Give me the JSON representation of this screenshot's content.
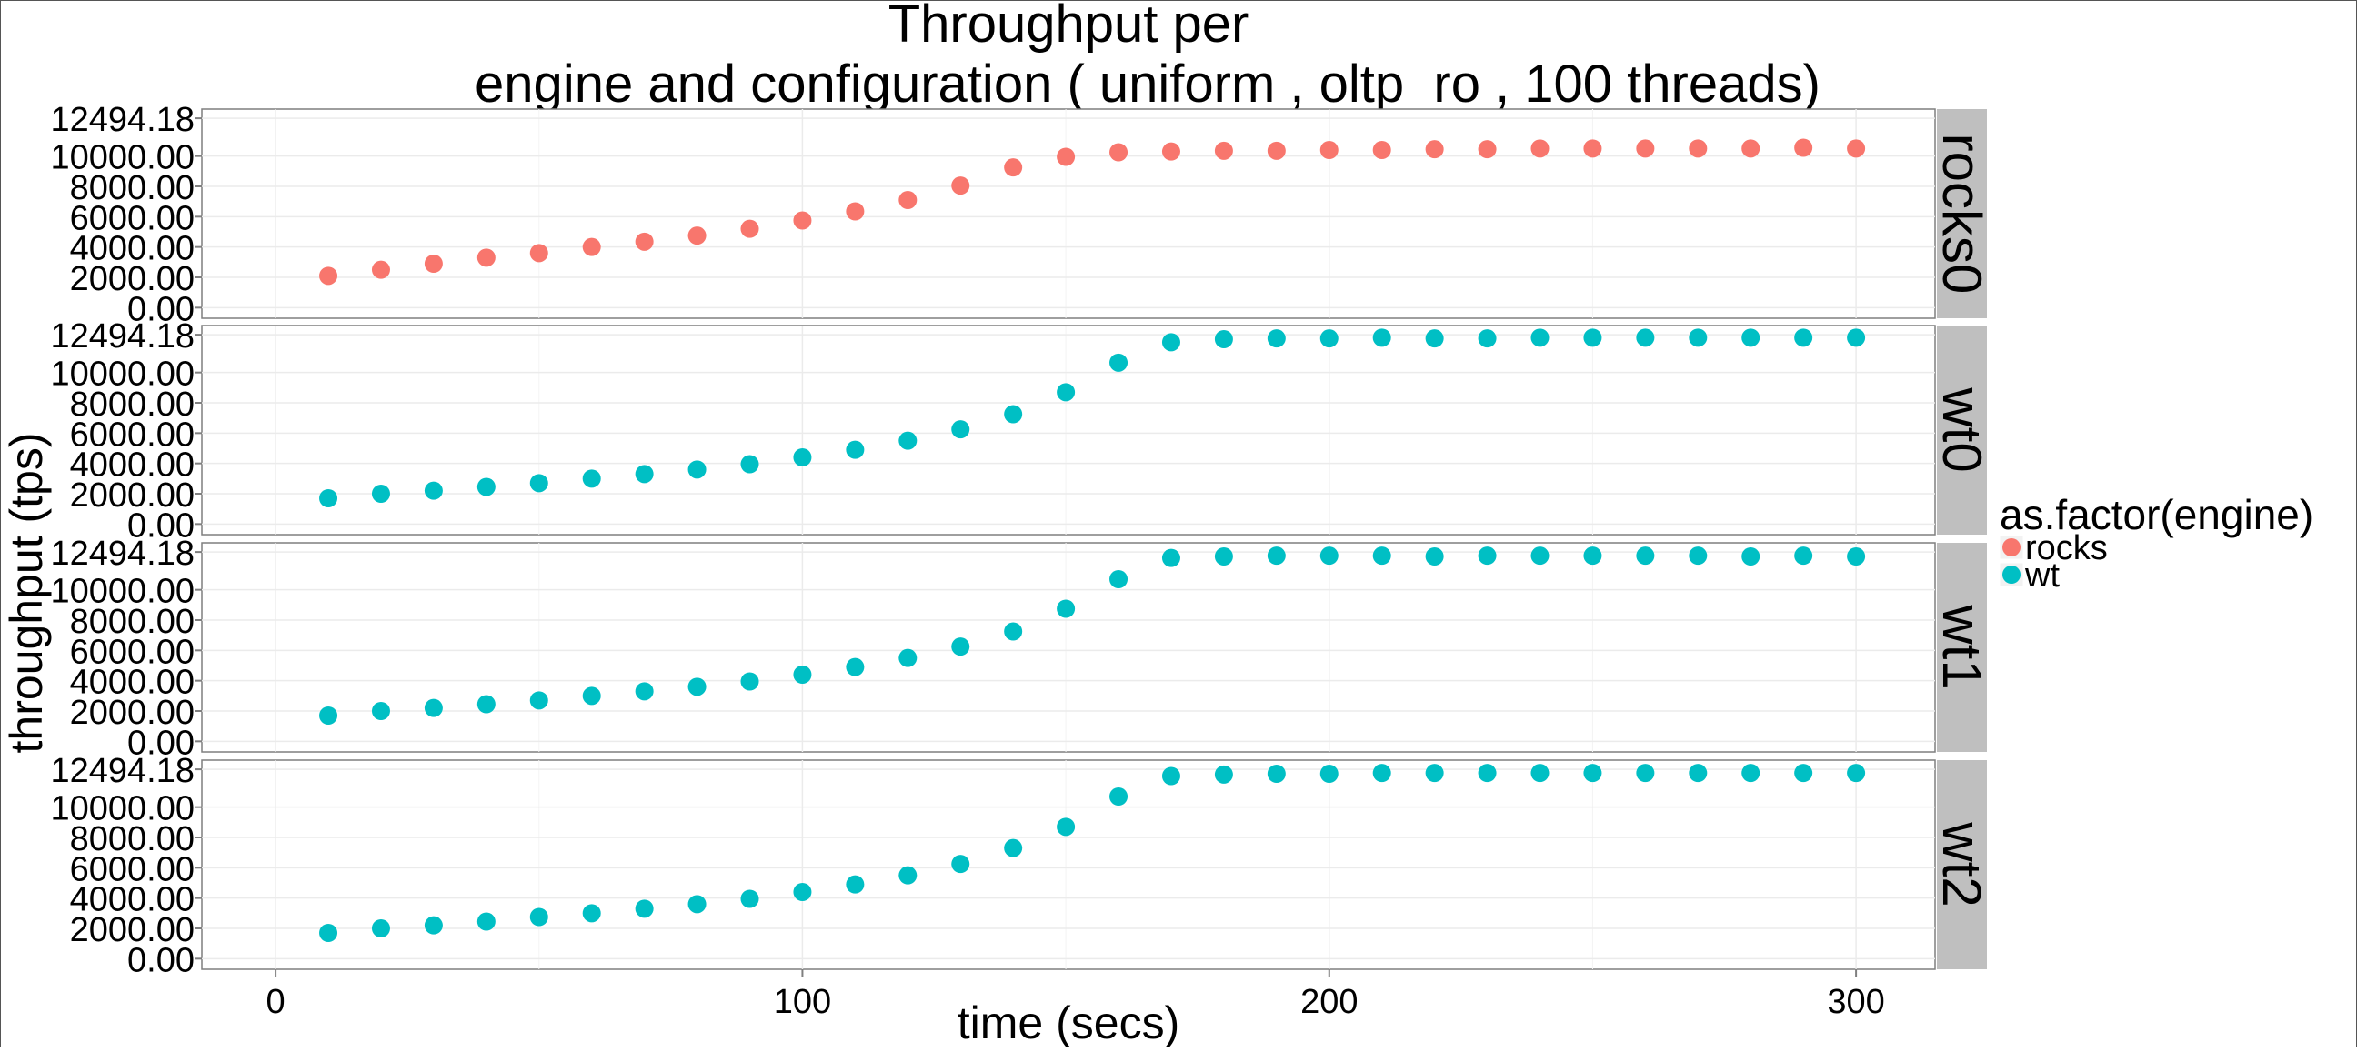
{
  "chart_data": {
    "type": "scatter",
    "title_lines": [
      "Throughput per",
      "engine and configuration ( uniform , oltp_ro ,  100  threads)"
    ],
    "xlabel": "time (secs)",
    "ylabel": "throughput (tps)",
    "xlim": [
      -14,
      315
    ],
    "ylim": [
      -700,
      13100
    ],
    "x_ticks": [
      0,
      100,
      200,
      300
    ],
    "x_tick_labels": [
      "0",
      "100",
      "200",
      "300"
    ],
    "y_ticks": [
      0,
      2000,
      4000,
      6000,
      8000,
      10000,
      12494.18
    ],
    "y_tick_labels": [
      "0.00",
      "2000.00",
      "4000.00",
      "6000.00",
      "8000.00",
      "10000.00",
      "12494.18"
    ],
    "grid": true,
    "legend": {
      "title": "as.factor(engine)",
      "placement": "right",
      "entries": [
        {
          "label": "rocks",
          "color": "#F8766D"
        },
        {
          "label": "wt",
          "color": "#00BFC4"
        }
      ]
    },
    "facets": [
      {
        "label": "rocks0",
        "engine": "rocks",
        "color": "#F8766D",
        "x": [
          10,
          20,
          30,
          40,
          50,
          60,
          70,
          80,
          90,
          100,
          110,
          120,
          130,
          140,
          150,
          160,
          170,
          180,
          190,
          200,
          210,
          220,
          230,
          240,
          250,
          260,
          270,
          280,
          290,
          300
        ],
        "y": [
          2100,
          2500,
          2900,
          3300,
          3600,
          4000,
          4350,
          4750,
          5200,
          5750,
          6350,
          7100,
          8050,
          9250,
          9950,
          10250,
          10300,
          10350,
          10350,
          10400,
          10400,
          10450,
          10450,
          10500,
          10500,
          10500,
          10500,
          10500,
          10550,
          10500
        ]
      },
      {
        "label": "wt0",
        "engine": "wt",
        "color": "#00BFC4",
        "x": [
          10,
          20,
          30,
          40,
          50,
          60,
          70,
          80,
          90,
          100,
          110,
          120,
          130,
          140,
          150,
          160,
          170,
          180,
          190,
          200,
          210,
          220,
          230,
          240,
          250,
          260,
          270,
          280,
          290,
          300
        ],
        "y": [
          1700,
          2000,
          2200,
          2450,
          2700,
          3000,
          3300,
          3600,
          3950,
          4400,
          4900,
          5500,
          6250,
          7250,
          8700,
          10650,
          12000,
          12200,
          12250,
          12250,
          12300,
          12250,
          12250,
          12300,
          12300,
          12300,
          12300,
          12300,
          12300,
          12300
        ]
      },
      {
        "label": "wt1",
        "engine": "wt",
        "color": "#00BFC4",
        "x": [
          10,
          20,
          30,
          40,
          50,
          60,
          70,
          80,
          90,
          100,
          110,
          120,
          130,
          140,
          150,
          160,
          170,
          180,
          190,
          200,
          210,
          220,
          230,
          240,
          250,
          260,
          270,
          280,
          290,
          300
        ],
        "y": [
          1700,
          2000,
          2200,
          2450,
          2700,
          3000,
          3300,
          3600,
          3950,
          4400,
          4900,
          5500,
          6250,
          7250,
          8750,
          10700,
          12100,
          12200,
          12250,
          12250,
          12250,
          12200,
          12250,
          12250,
          12250,
          12250,
          12250,
          12200,
          12250,
          12200
        ]
      },
      {
        "label": "wt2",
        "engine": "wt",
        "color": "#00BFC4",
        "x": [
          10,
          20,
          30,
          40,
          50,
          60,
          70,
          80,
          90,
          100,
          110,
          120,
          130,
          140,
          150,
          160,
          170,
          180,
          190,
          200,
          210,
          220,
          230,
          240,
          250,
          260,
          270,
          280,
          290,
          300
        ],
        "y": [
          1700,
          2000,
          2200,
          2450,
          2750,
          3000,
          3300,
          3600,
          3950,
          4400,
          4900,
          5500,
          6250,
          7300,
          8700,
          10700,
          12050,
          12150,
          12200,
          12200,
          12250,
          12250,
          12250,
          12250,
          12250,
          12250,
          12250,
          12250,
          12250,
          12250
        ]
      }
    ]
  }
}
